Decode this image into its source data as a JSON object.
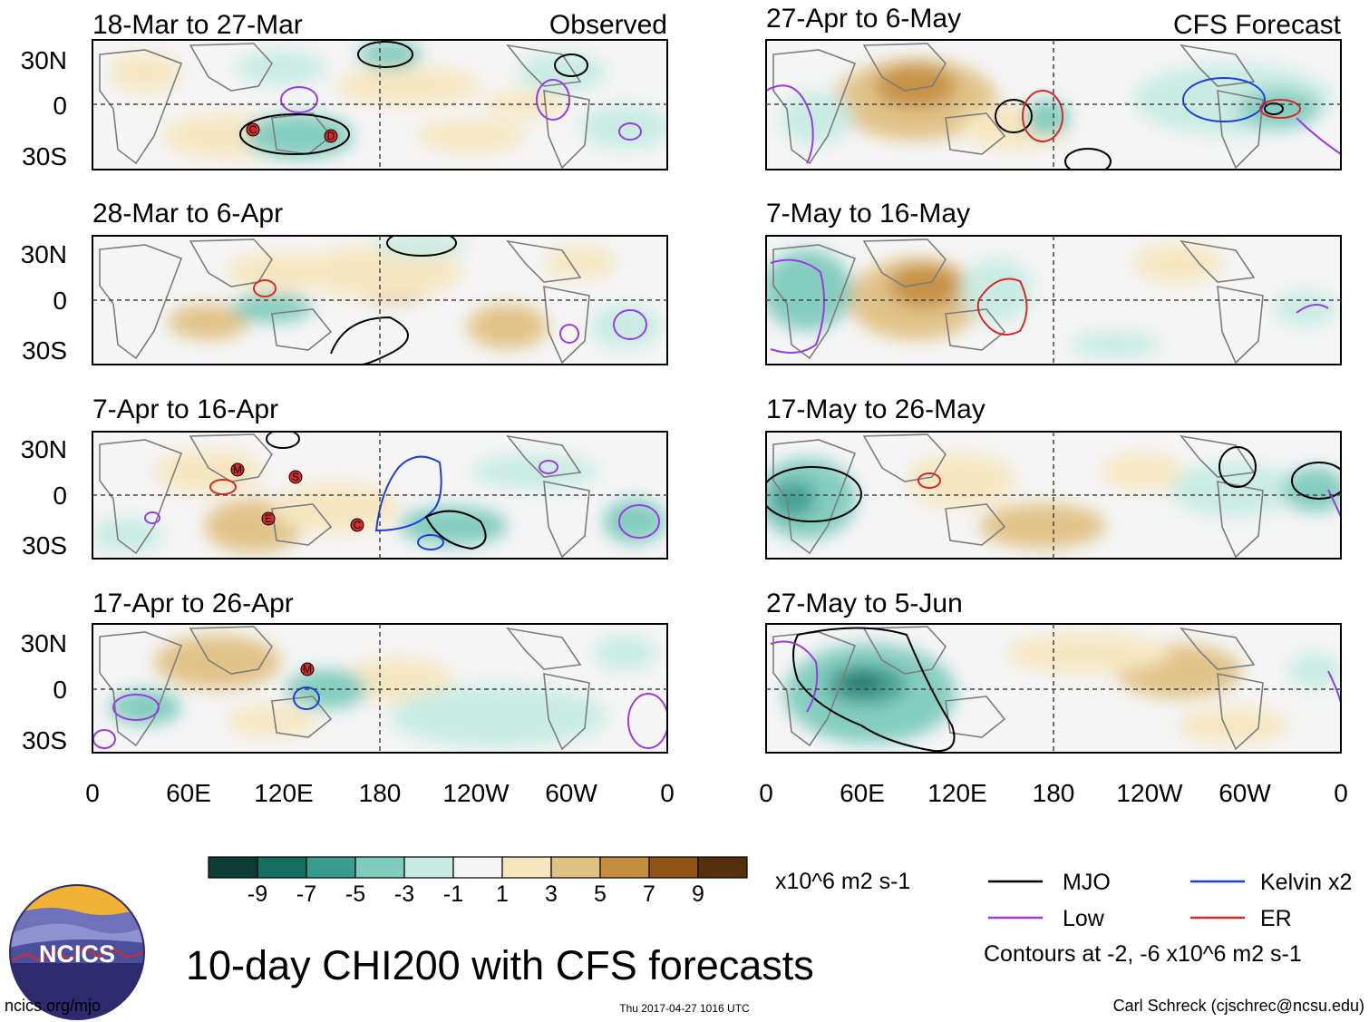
{
  "headers": {
    "observed": "Observed",
    "forecast": "CFS Forecast"
  },
  "panels": [
    {
      "title": "18-Mar to 27-Mar",
      "column": "observed"
    },
    {
      "title": "28-Mar to 6-Apr",
      "column": "observed"
    },
    {
      "title": "7-Apr to 16-Apr",
      "column": "observed"
    },
    {
      "title": "17-Apr to 26-Apr",
      "column": "observed"
    },
    {
      "title": "27-Apr to 6-May",
      "column": "forecast"
    },
    {
      "title": "7-May to 16-May",
      "column": "forecast"
    },
    {
      "title": "17-May to 26-May",
      "column": "forecast"
    },
    {
      "title": "27-May to 5-Jun",
      "column": "forecast"
    }
  ],
  "lat_labels": [
    "30N",
    "0",
    "30S"
  ],
  "lon_labels": [
    "0",
    "60E",
    "120E",
    "180",
    "120W",
    "60W",
    "0"
  ],
  "colorbar": {
    "colors": [
      "#0b3d34",
      "#146e62",
      "#3a9c8f",
      "#7fcbbd",
      "#c7ebe2",
      "#f5f5f5",
      "#f6e6bf",
      "#e0c184",
      "#c48e3e",
      "#8f5413",
      "#54310a"
    ],
    "labels": [
      "-9",
      "-7",
      "-5",
      "-3",
      "-1",
      "1",
      "3",
      "5",
      "7",
      "9"
    ],
    "units": "x10^6 m2 s-1"
  },
  "legend": {
    "items": [
      {
        "label": "MJO",
        "color": "#000000"
      },
      {
        "label": "Kelvin x2",
        "color": "#1f3fd6"
      },
      {
        "label": "Low",
        "color": "#9a3de0"
      },
      {
        "label": "ER",
        "color": "#d62a2a"
      }
    ],
    "contours_note": "Contours at -2, -6 x10^6 m2 s-1"
  },
  "logo": {
    "text": "NCICS"
  },
  "main_title": "10-day CHI200 with CFS forecasts",
  "footer": {
    "left": "ncics.org/mjo",
    "center": "Thu 2017-04-27 1016 UTC",
    "right": "Carl Schreck (cjschrec@ncsu.edu)"
  },
  "storm_markers": [
    {
      "panel": 0,
      "labels": [
        "C",
        "D"
      ]
    },
    {
      "panel": 2,
      "labels": [
        "M",
        "S",
        "E",
        "C"
      ]
    },
    {
      "panel": 3,
      "labels": [
        "M"
      ]
    }
  ]
}
